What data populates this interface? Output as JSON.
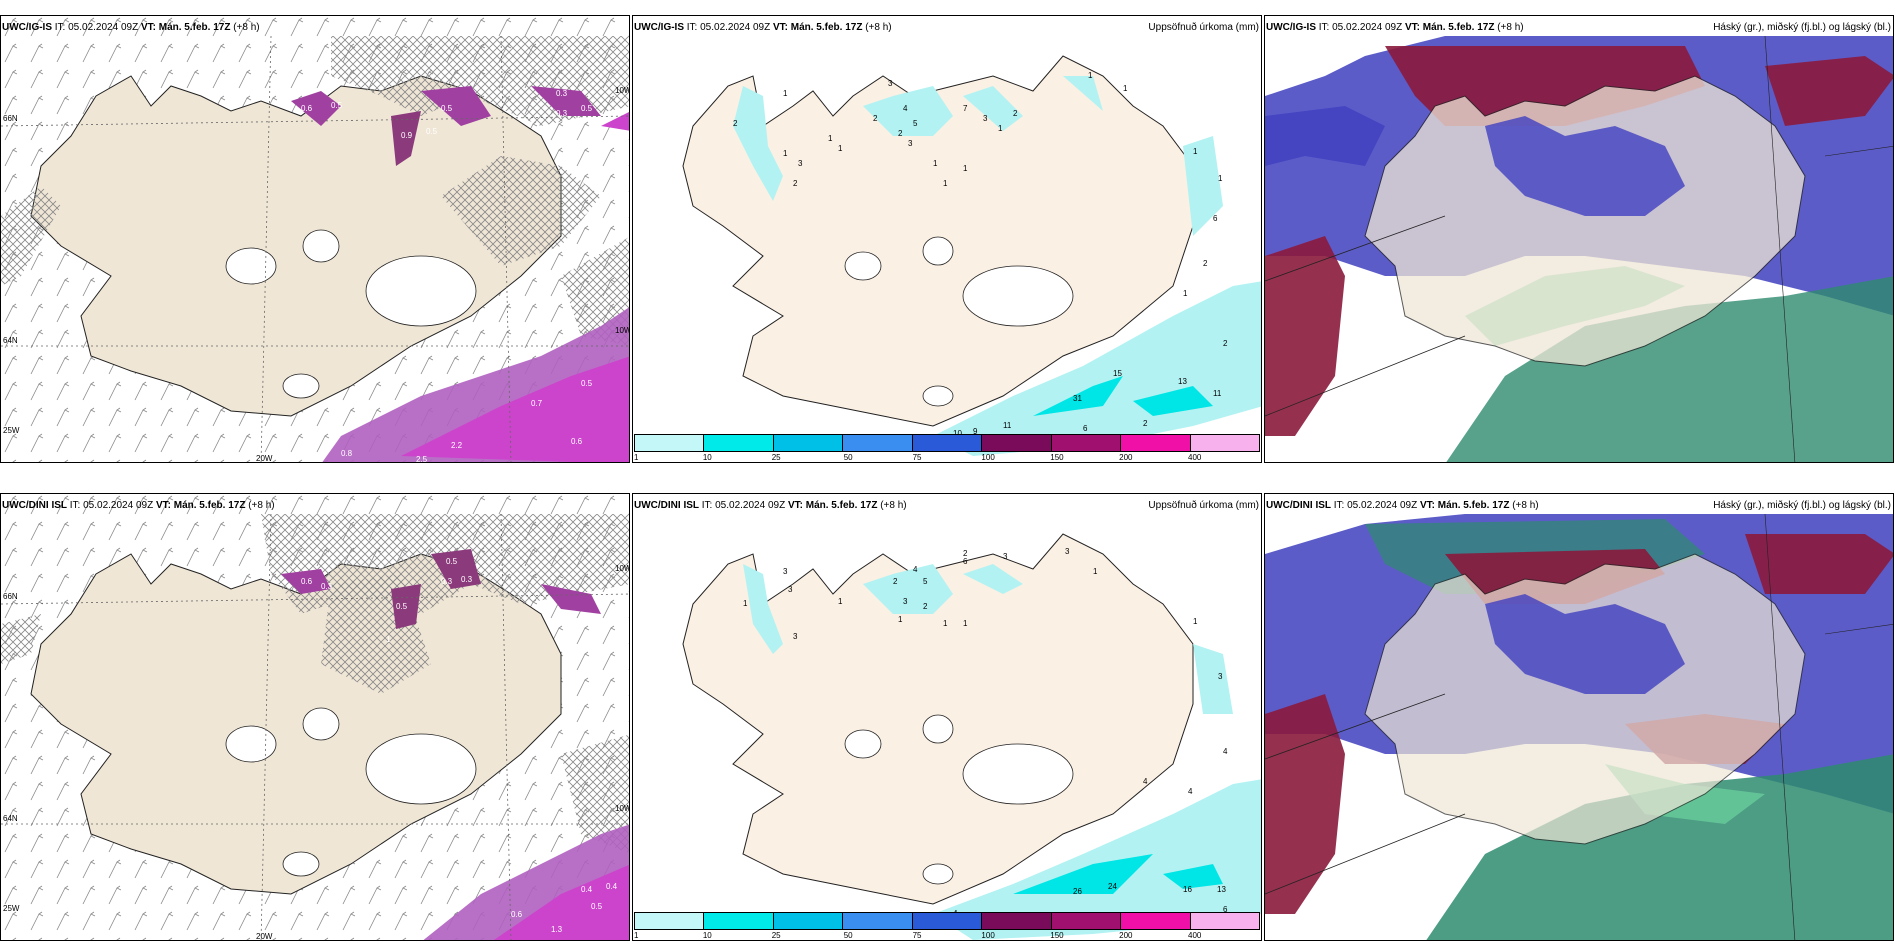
{
  "colors": {
    "land": "#efe6d6",
    "land_precip": "#fbf0e4",
    "ice_cap": "#ffffff",
    "precip_light": "#b2f2f2",
    "precip_mid": "#00e5e5",
    "snow_purple": "#a040a0",
    "snow_magenta": "#cc44cc",
    "cloud_high": "#2e8b6e",
    "cloud_mid": "#8b1a3c",
    "cloud_low": "#4040c0"
  },
  "panels": [
    {
      "model": "UWC/IG-IS",
      "it_label": "IT:",
      "it_value": "05.02.2024 09Z",
      "vt_label": "VT: Mán. 5.feb. 17Z",
      "lead": "(+8 h)",
      "title_right": "",
      "axis": {
        "lat_top": "66N",
        "lon_bottom": "20W",
        "lat_bottom": "25W",
        "right_top": "10W",
        "right_mid": "10W",
        "left_mid": "64N"
      },
      "labels": [
        "0.6",
        "0.5",
        "0.3",
        "0.5",
        "0.3",
        "0.5",
        "0.9",
        "0.5",
        "0.7",
        "0.5",
        "2.2",
        "2.5",
        "0.6",
        "0.8"
      ]
    },
    {
      "model": "UWC/IG-IS",
      "it_label": "IT:",
      "it_value": "05.02.2024 09Z",
      "vt_label": "VT: Mán. 5.feb. 17Z",
      "lead": "(+8 h)",
      "title_right": "Uppsöfnuð úrkoma (mm)",
      "labels": [
        "1",
        "2",
        "1",
        "2",
        "3",
        "1",
        "1",
        "3",
        "2",
        "4",
        "5",
        "2",
        "3",
        "7",
        "3",
        "1",
        "2",
        "1",
        "1",
        "1",
        "1",
        "1",
        "1",
        "1",
        "6",
        "2",
        "1",
        "2",
        "15",
        "13",
        "31",
        "11",
        "11",
        "10",
        "9",
        "6",
        "2"
      ]
    },
    {
      "model": "UWC/IG-IS",
      "it_label": "IT:",
      "it_value": "05.02.2024 09Z",
      "vt_label": "VT: Mán. 5.feb. 17Z",
      "lead": "(+8 h)",
      "title_right": "Háský (gr.), miðský (fj.bl.) og lágský (bl.)",
      "labels": []
    },
    {
      "model": "UWC/DINI ISL",
      "it_label": "IT:",
      "it_value": "05.02.2024 09Z",
      "vt_label": "VT: Mán. 5.feb. 17Z",
      "lead": "(+8 h)",
      "title_right": "",
      "axis": {
        "lat_top": "66N",
        "lon_bottom": "20W",
        "lat_bottom": "25W",
        "right_top": "10W",
        "right_mid": "10W",
        "left_mid": "64N"
      },
      "labels": [
        "0.6",
        "0.3",
        "0.5",
        "0.3",
        "0.3",
        "0.5",
        "1",
        "0.4",
        "0.4",
        "0.5",
        "0.6",
        "1.3"
      ]
    },
    {
      "model": "UWC/DINI ISL",
      "it_label": "IT:",
      "it_value": "05.02.2024 09Z",
      "vt_label": "VT: Mán. 5.feb. 17Z",
      "lead": "(+8 h)",
      "title_right": "Uppsöfnuð úrkoma (mm)",
      "labels": [
        "3",
        "3",
        "1",
        "3",
        "6",
        "3",
        "2",
        "1",
        "2",
        "4",
        "5",
        "3",
        "2",
        "1",
        "1",
        "1",
        "3",
        "1",
        "1",
        "3",
        "4",
        "4",
        "4",
        "26",
        "24",
        "16",
        "13",
        "6",
        "5",
        "4"
      ]
    },
    {
      "model": "UWC/DINI ISL",
      "it_label": "IT:",
      "it_value": "05.02.2024 09Z",
      "vt_label": "VT: Mán. 5.feb. 17Z",
      "lead": "(+8 h)",
      "title_right": "Háský (gr.), miðský (fj.bl.) og lágský (bl.)",
      "labels": []
    }
  ],
  "colorbar": {
    "ticks": [
      "1",
      "10",
      "25",
      "50",
      "75",
      "100",
      "150",
      "200",
      "400"
    ],
    "colors": [
      "#c4f7f7",
      "#00eaea",
      "#00c0e8",
      "#3a8ef0",
      "#2b5ad8",
      "#7a0a5a",
      "#a0106e",
      "#f010a8",
      "#f7b2ee"
    ]
  }
}
